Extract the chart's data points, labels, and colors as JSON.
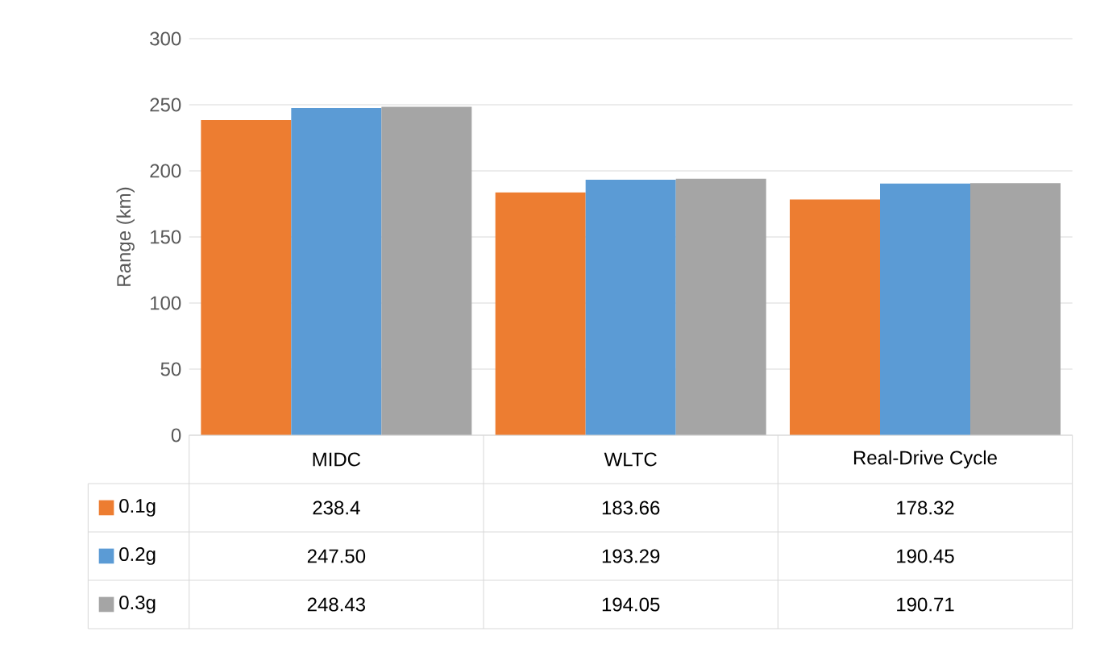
{
  "chart_data": {
    "type": "bar",
    "ylabel": "Range (km)",
    "categories": [
      "MIDC",
      "WLTC",
      "Real-Drive Cycle"
    ],
    "series": [
      {
        "name": "0.1g",
        "color": "#ed7d31",
        "values": [
          238.4,
          183.66,
          178.32
        ],
        "value_labels": [
          "238.4",
          "183.66",
          "178.32"
        ]
      },
      {
        "name": "0.2g",
        "color": "#5b9bd5",
        "values": [
          247.5,
          193.29,
          190.45
        ],
        "value_labels": [
          "247.50",
          "193.29",
          "190.45"
        ]
      },
      {
        "name": "0.3g",
        "color": "#a5a5a5",
        "values": [
          248.43,
          194.05,
          190.71
        ],
        "value_labels": [
          "248.43",
          "194.05",
          "190.71"
        ]
      }
    ],
    "ylim": [
      0,
      300
    ],
    "yticks": [
      0,
      50,
      100,
      150,
      200,
      250,
      300
    ],
    "grid": "y",
    "legend": "bottom"
  }
}
